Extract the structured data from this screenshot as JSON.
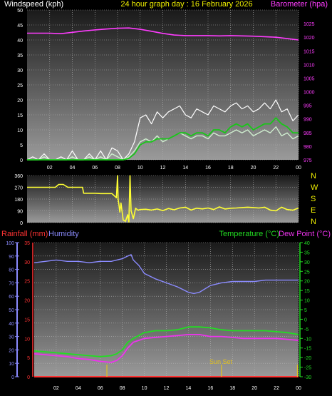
{
  "colors": {
    "background": "#000000",
    "panel_top": "#1a1a1a",
    "panel_bottom": "#9a9a9a",
    "grid": "#b5b5b5",
    "axis": "#dddddd",
    "wind_avg": "#cfeecf",
    "wind_gust": "#ffffff",
    "wind_mean": "#19c619",
    "barometer": "#ff3cff",
    "direction": "#ffff33",
    "rainfall": "#ff3333",
    "humidity": "#8b8bff",
    "temperature": "#22dd22",
    "dew_point": "#ee33ee",
    "sunset": "#e0c020",
    "title": "#f0f000",
    "compass": "#f0f000"
  },
  "chart_data": [
    {
      "id": "wind-baro",
      "type": "line",
      "title": "24 hour graph day : 16 February 2026",
      "left_label": "Windspeed (kph)",
      "right_label": "Barometer (hpa)",
      "x": {
        "min": 0,
        "max": 24,
        "ticks": [
          "02",
          "04",
          "06",
          "08",
          "10",
          "12",
          "14",
          "16",
          "18",
          "20",
          "22",
          "00"
        ]
      },
      "y_left": {
        "min": 0,
        "max": 50,
        "ticks": [
          0,
          5,
          10,
          15,
          20,
          25,
          30,
          35,
          40,
          45,
          50
        ]
      },
      "y_right": {
        "min": 975,
        "max": 1030,
        "ticks": [
          975,
          980,
          985,
          990,
          995,
          1000,
          1005,
          1010,
          1015,
          1020,
          1025
        ]
      },
      "series": [
        {
          "name": "",
          "kind": "gust",
          "axis": "left",
          "x": [
            0,
            0.5,
            1,
            1.5,
            2,
            2.5,
            3,
            3.5,
            4,
            4.5,
            5,
            5.5,
            6,
            6.5,
            7,
            7.5,
            8,
            8.5,
            9,
            9.5,
            10,
            10.5,
            11,
            11.5,
            12,
            12.5,
            13,
            13.5,
            14,
            14.5,
            15,
            15.5,
            16,
            16.5,
            17,
            17.5,
            18,
            18.5,
            19,
            19.5,
            20,
            20.5,
            21,
            21.5,
            22,
            22.5,
            23,
            23.5,
            24
          ],
          "values": [
            0,
            1,
            0,
            2,
            0,
            0,
            1,
            0,
            3,
            0,
            0,
            2,
            0,
            3,
            0,
            4,
            3,
            0,
            2,
            6,
            14,
            15,
            12,
            16,
            14,
            16,
            17,
            18,
            15,
            14,
            17,
            16,
            15,
            18,
            17,
            16,
            18,
            19,
            17,
            18,
            16,
            17,
            19,
            17,
            20,
            16,
            17,
            13,
            15
          ]
        },
        {
          "name": "",
          "kind": "average",
          "axis": "left",
          "x": [
            0,
            0.5,
            1,
            1.5,
            2,
            2.5,
            3,
            3.5,
            4,
            4.5,
            5,
            5.5,
            6,
            6.5,
            7,
            7.5,
            8,
            8.5,
            9,
            9.5,
            10,
            10.5,
            11,
            11.5,
            12,
            12.5,
            13,
            13.5,
            14,
            14.5,
            15,
            15.5,
            16,
            16.5,
            17,
            17.5,
            18,
            18.5,
            19,
            19.5,
            20,
            20.5,
            21,
            21.5,
            22,
            22.5,
            23,
            23.5,
            24
          ],
          "values": [
            0,
            0,
            0,
            1,
            0,
            0,
            0,
            0,
            1,
            0,
            0,
            1,
            0,
            1,
            0,
            2,
            1,
            0,
            1,
            3,
            6,
            7,
            6,
            8,
            6,
            7,
            8,
            9,
            8,
            7,
            8,
            8,
            7,
            9,
            8,
            8,
            9,
            10,
            9,
            10,
            8,
            9,
            10,
            9,
            11,
            8,
            9,
            7,
            8
          ]
        },
        {
          "name": "",
          "kind": "mean",
          "axis": "left",
          "x": [
            0,
            0.5,
            1,
            1.5,
            2,
            2.5,
            3,
            3.5,
            4,
            4.5,
            5,
            5.5,
            6,
            6.5,
            7,
            7.5,
            8,
            8.5,
            9,
            9.5,
            10,
            10.5,
            11,
            11.5,
            12,
            12.5,
            13,
            13.5,
            14,
            14.5,
            15,
            15.5,
            16,
            16.5,
            17,
            17.5,
            18,
            18.5,
            19,
            19.5,
            20,
            20.5,
            21,
            21.5,
            22,
            22.5,
            23,
            23.5,
            24
          ],
          "values": [
            0,
            0,
            0,
            0,
            0,
            0,
            0,
            0,
            0,
            0,
            0,
            0,
            0,
            0,
            0,
            0,
            0,
            0,
            0.5,
            2,
            5,
            6,
            6,
            7,
            7,
            7,
            8,
            9,
            9,
            8,
            9,
            9,
            8,
            10,
            10,
            9,
            11,
            12,
            11,
            12,
            10,
            11,
            12,
            12,
            14,
            12,
            11,
            9,
            9
          ]
        },
        {
          "name": "",
          "kind": "barometer",
          "axis": "right",
          "x": [
            0,
            1,
            2,
            3,
            4,
            5,
            6,
            7,
            8,
            9,
            10,
            11,
            12,
            13,
            14,
            15,
            16,
            17,
            18,
            19,
            20,
            21,
            22,
            23,
            24
          ],
          "values": [
            1021.5,
            1021.5,
            1021.5,
            1021.3,
            1021.8,
            1022.3,
            1022.7,
            1023,
            1023.3,
            1023.4,
            1022.9,
            1022.2,
            1021.4,
            1020.8,
            1020.6,
            1020.6,
            1020.6,
            1020.5,
            1020.6,
            1020.5,
            1020.4,
            1020.2,
            1020,
            1019.5,
            1019
          ]
        }
      ]
    },
    {
      "id": "wind-direction",
      "type": "line",
      "x": {
        "min": 0,
        "max": 24
      },
      "y": {
        "min": 0,
        "max": 360,
        "ticks": [
          0,
          90,
          180,
          270,
          360
        ]
      },
      "compass": [
        "N",
        "W",
        "S",
        "E",
        "N"
      ],
      "series": [
        {
          "name": "",
          "axis": "left",
          "x": [
            0,
            0.5,
            1,
            1.5,
            2,
            2.5,
            2.8,
            3.2,
            3.6,
            4,
            4.5,
            4.9,
            5,
            5.5,
            6,
            6.5,
            7,
            7.5,
            7.9,
            8,
            8.05,
            8.1,
            8.2,
            8.3,
            8.5,
            8.7,
            8.9,
            9,
            9.1,
            9.2,
            9.4,
            9.6,
            9.8,
            10,
            10.5,
            11,
            11.5,
            12,
            12.5,
            13,
            13.5,
            14,
            14.5,
            15,
            15.5,
            16,
            16.5,
            17,
            17.5,
            18,
            18.5,
            19,
            19.5,
            20,
            20.5,
            21,
            21.5,
            22,
            22.5,
            23,
            23.5,
            24
          ],
          "values": [
            270,
            270,
            270,
            270,
            270,
            270,
            292,
            292,
            270,
            270,
            270,
            270,
            225,
            225,
            225,
            222,
            222,
            222,
            190,
            360,
            180,
            150,
            80,
            150,
            20,
            10,
            60,
            5,
            360,
            90,
            30,
            110,
            95,
            100,
            102,
            96,
            104,
            92,
            108,
            98,
            112,
            118,
            96,
            110,
            105,
            112,
            100,
            120,
            104,
            110,
            112,
            115,
            118,
            115,
            112,
            118,
            96,
            90,
            118,
            100,
            95,
            112
          ]
        }
      ]
    },
    {
      "id": "temp-hum-rain",
      "type": "line",
      "left_outer_label": "Rainfall (mm)",
      "left_inner_label": "Humidity",
      "right_label_1": "Temperature (°C)",
      "right_label_2": "Dew Point (°C)",
      "annotation": "Sun Set",
      "x": {
        "min": 0,
        "max": 24,
        "ticks": [
          "02",
          "04",
          "06",
          "08",
          "10",
          "12",
          "14",
          "16",
          "18",
          "20",
          "22",
          "00"
        ]
      },
      "y_rain": {
        "min": 0,
        "max": 35,
        "ticks": [
          0,
          5,
          10,
          15,
          20,
          25,
          30,
          35
        ]
      },
      "y_humidity": {
        "min": 0,
        "max": 100,
        "ticks": [
          0,
          10,
          20,
          30,
          40,
          50,
          60,
          70,
          80,
          90,
          100
        ]
      },
      "y_temp": {
        "min": -30,
        "max": 40,
        "ticks": [
          -30,
          -25,
          -20,
          -15,
          -10,
          -5,
          0,
          5,
          10,
          15,
          20,
          25,
          30,
          35,
          40
        ]
      },
      "markers_hours": [
        6.6,
        17.0,
        23.9
      ],
      "sunset_hour": 17.0,
      "series": [
        {
          "name": "Humidity",
          "axis": "humidity",
          "x": [
            0,
            1,
            2,
            3,
            4,
            5,
            6,
            7,
            8,
            8.5,
            8.8,
            9,
            9.5,
            10,
            11,
            12,
            13,
            14,
            14.5,
            15,
            16,
            17,
            18,
            19,
            20,
            21,
            22,
            23,
            24
          ],
          "values": [
            85,
            86,
            87,
            86,
            86,
            85,
            86,
            86,
            88,
            90,
            91,
            87,
            83,
            77,
            73,
            70,
            67,
            63,
            62,
            63,
            68,
            70,
            71,
            71,
            71,
            72,
            72,
            72,
            72
          ]
        },
        {
          "name": "Temperature",
          "axis": "temp",
          "x": [
            0,
            1,
            2,
            3,
            4,
            5,
            6,
            7,
            7.5,
            8,
            8.5,
            9,
            9.5,
            10,
            11,
            12,
            13,
            14,
            15,
            16,
            17,
            18,
            19,
            20,
            21,
            22,
            23,
            24
          ],
          "values": [
            -16.5,
            -17,
            -17.5,
            -18,
            -18.5,
            -19,
            -19.5,
            -19,
            -18,
            -16,
            -12,
            -10,
            -8.5,
            -7,
            -6,
            -6,
            -5.5,
            -4,
            -4,
            -4.5,
            -5.5,
            -6,
            -6,
            -6,
            -6,
            -6.5,
            -7,
            -8
          ]
        },
        {
          "name": "Dew Point",
          "axis": "temp",
          "x": [
            0,
            1,
            2,
            3,
            4,
            5,
            6,
            7,
            7.5,
            8,
            8.5,
            9,
            9.5,
            10,
            11,
            12,
            13,
            14,
            15,
            16,
            17,
            18,
            19,
            20,
            21,
            22,
            23,
            24
          ],
          "values": [
            -18,
            -18.5,
            -19,
            -19.5,
            -20.5,
            -21,
            -22,
            -22.5,
            -21.5,
            -19,
            -15,
            -12,
            -11,
            -10,
            -9.5,
            -9,
            -8.5,
            -8,
            -8,
            -9,
            -9,
            -9.5,
            -10,
            -10,
            -10,
            -10,
            -10.5,
            -11
          ]
        },
        {
          "name": "Rainfall",
          "axis": "rain",
          "x": [
            0,
            24
          ],
          "values": [
            0,
            0
          ]
        }
      ]
    }
  ]
}
